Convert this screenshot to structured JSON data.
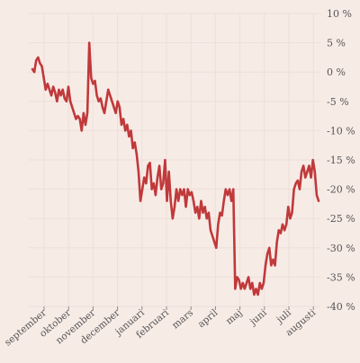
{
  "chart_data": {
    "type": "line",
    "title": "",
    "xlabel": "",
    "ylabel": "",
    "ylim": [
      -40,
      10
    ],
    "y_axis_position": "right",
    "y_ticks": [
      10,
      5,
      0,
      -5,
      -10,
      -15,
      -20,
      -25,
      -30,
      -35,
      -40
    ],
    "y_tick_labels": [
      "10 %",
      "5 %",
      "0 %",
      "-5 %",
      "-10 %",
      "-15 %",
      "-20 %",
      "-25 %",
      "-30 %",
      "-35 %",
      "-40 %"
    ],
    "x_tick_labels": [
      "september",
      "oktober",
      "november",
      "december",
      "januari",
      "februari",
      "mars",
      "april",
      "maj",
      "juni",
      "juli",
      "augusti"
    ],
    "grid": true,
    "colors": {
      "line": "#c0393b",
      "background": "#f7ebe6",
      "grid": "#eedfd8"
    },
    "series": [
      {
        "values": [
          0.5,
          0,
          2,
          2.5,
          1.5,
          1,
          -1,
          -3,
          -2,
          -3,
          -4,
          -2.5,
          -3.5,
          -5,
          -3,
          -4,
          -3,
          -4.5,
          -5,
          -2.5,
          -5,
          -6,
          -7,
          -8,
          -7.5,
          -8,
          -10,
          -7,
          -9,
          -7,
          5,
          -1,
          -2,
          -1.5,
          -4,
          -5,
          -4.5,
          -6,
          -7,
          -5,
          -3,
          -4,
          -5,
          -6,
          -7,
          -5,
          -6,
          -9,
          -8,
          -10,
          -9,
          -11,
          -10,
          -13,
          -12,
          -14,
          -17,
          -22,
          -20,
          -18,
          -19,
          -16,
          -15.5,
          -20,
          -19,
          -21,
          -18,
          -16,
          -20,
          -19,
          -15,
          -22,
          -17,
          -22,
          -25,
          -23,
          -20,
          -22,
          -20,
          -21,
          -20,
          -23,
          -20,
          -21,
          -20.5,
          -22,
          -24,
          -23,
          -25,
          -22,
          -24,
          -23,
          -25,
          -24,
          -27,
          -28,
          -29,
          -30,
          -26,
          -24,
          -24.5,
          -22,
          -20,
          -21,
          -20,
          -22,
          -20,
          -37,
          -35,
          -35.5,
          -37,
          -36,
          -37,
          -36,
          -35,
          -37,
          -36,
          -38,
          -37,
          -38,
          -36,
          -37,
          -36,
          -33,
          -31,
          -30,
          -33,
          -32,
          -33,
          -29,
          -27,
          -27.5,
          -26,
          -27,
          -26,
          -23,
          -25,
          -24,
          -20,
          -19,
          -18.5,
          -20,
          -17,
          -16,
          -18,
          -17,
          -16,
          -18,
          -15,
          -17,
          -21,
          -22
        ]
      }
    ]
  }
}
